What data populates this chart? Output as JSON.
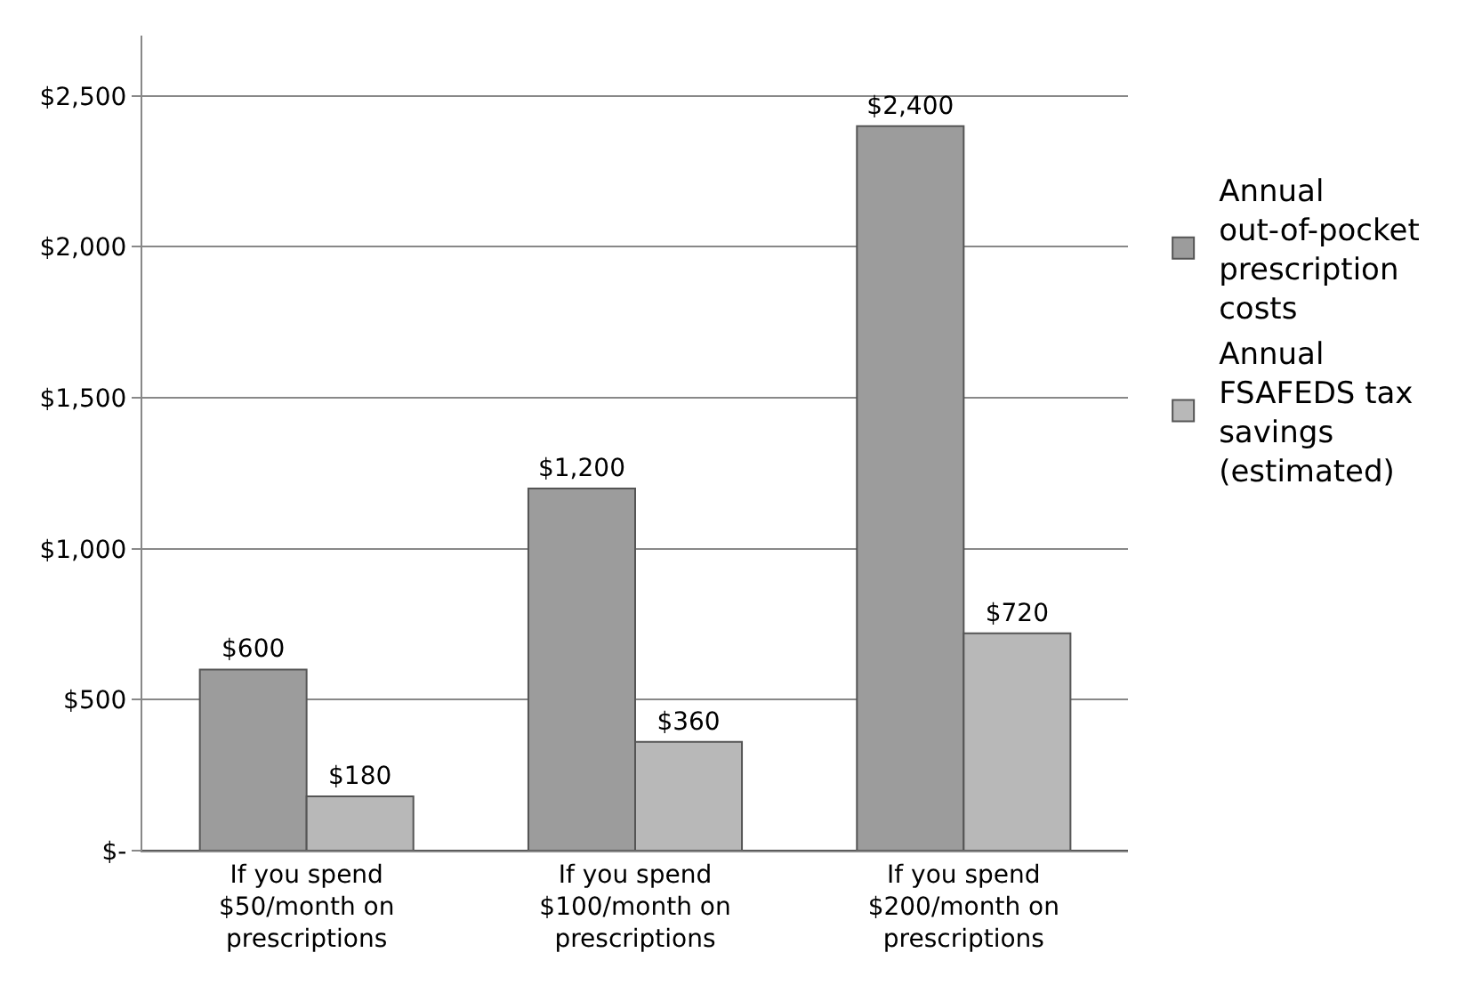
{
  "chart_data": {
    "type": "bar",
    "categories": [
      "If you spend $50/month on prescriptions",
      "If you spend $100/month on prescriptions",
      "If you spend $200/month on prescriptions"
    ],
    "series": [
      {
        "name": "Annual out-of-pocket prescription costs",
        "color": "#9c9c9c",
        "values": [
          600,
          1200,
          2400
        ],
        "value_labels": [
          "$600",
          "$1,200",
          "$2,400"
        ]
      },
      {
        "name": "Annual FSAFEDS tax savings (estimated)",
        "color": "#b8b8b8",
        "values": [
          180,
          360,
          720
        ],
        "value_labels": [
          "$180",
          "$360",
          "$720"
        ]
      }
    ],
    "ylim": [
      0,
      2700
    ],
    "yticks": [
      {
        "value": 0,
        "label": "$-"
      },
      {
        "value": 500,
        "label": "$500"
      },
      {
        "value": 1000,
        "label": "$1,000"
      },
      {
        "value": 1500,
        "label": "$1,500"
      },
      {
        "value": 2000,
        "label": "$2,000"
      },
      {
        "value": 2500,
        "label": "$2,500"
      }
    ],
    "grid": "y",
    "legend": "right"
  }
}
